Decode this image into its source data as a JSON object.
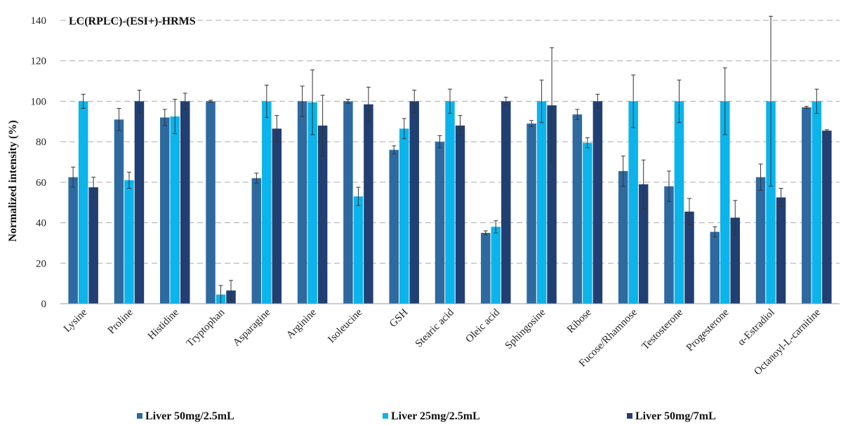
{
  "chart_data": {
    "type": "bar",
    "title": "LC(RPLC)-(ESI+)-HRMS",
    "ylabel": "Normalized intensity (%)",
    "xlabel": "",
    "ylim": [
      0,
      140
    ],
    "yticks": [
      0,
      20,
      40,
      60,
      80,
      100,
      120,
      140
    ],
    "grid": "horizontal dashed",
    "legend_position": "bottom",
    "categories": [
      "Lysine",
      "Proline",
      "Histidine",
      "Tryptophan",
      "Asparagine",
      "Arginine",
      "Isoleucine",
      "GSH",
      "Stearic acid",
      "Oleic acid",
      "Sphingosine",
      "Ribose",
      "Fucose/Rhamnose",
      "Testosterone",
      "Progesterone",
      "α-Estradiol",
      "Octanoyl-L-carnitine"
    ],
    "series": [
      {
        "name": "Liver 50mg/2.5mL",
        "color": "#2e6aa0",
        "values": [
          62.5,
          91,
          92,
          100,
          62,
          100,
          100,
          76,
          80,
          35,
          89,
          93.5,
          65.5,
          58,
          35.5,
          62.5,
          97
        ],
        "errors": [
          5,
          5.5,
          4,
          0.5,
          2.5,
          7.5,
          1,
          2,
          3,
          1,
          1.5,
          2.5,
          7.5,
          7.5,
          2.5,
          6.5,
          0.5
        ]
      },
      {
        "name": "Liver 25mg/2.5mL",
        "color": "#0bb4ea",
        "values": [
          100,
          61,
          92.5,
          4.5,
          100,
          99.5,
          53,
          86.5,
          100,
          38,
          100,
          79.5,
          100,
          100,
          100,
          100,
          100
        ],
        "errors": [
          3.5,
          4,
          8.5,
          4.5,
          8,
          16,
          4.5,
          5,
          6,
          3,
          10.5,
          2.5,
          13,
          10.5,
          16.5,
          42,
          6
        ]
      },
      {
        "name": "Liver 50mg/7mL",
        "color": "#213f72",
        "values": [
          57.5,
          100,
          100,
          6.5,
          86.5,
          88,
          98.5,
          100,
          88,
          100,
          98,
          100,
          59,
          45.5,
          42.5,
          52.5,
          85.5
        ],
        "errors": [
          5,
          5.5,
          4,
          5,
          6.5,
          15,
          8.5,
          5.5,
          5,
          2,
          28.5,
          3.5,
          12,
          6.5,
          8.5,
          4.5,
          0.5
        ]
      }
    ]
  }
}
